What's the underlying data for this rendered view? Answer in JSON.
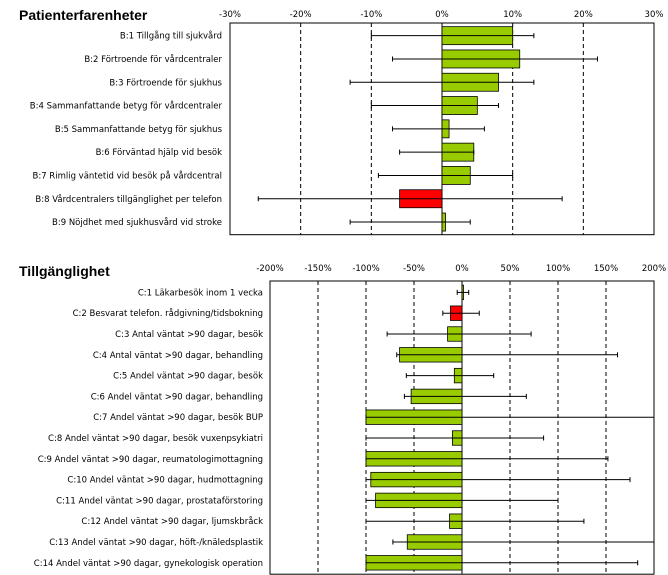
{
  "colors": {
    "positive": "#99cc00",
    "negative": "#ff0000",
    "bar_stroke": "#000000",
    "grid": "#000000",
    "frame": "#000000"
  },
  "chart_data": [
    {
      "type": "bar",
      "orientation": "horizontal",
      "title": "Patienterfarenheter",
      "xlim": [
        -30,
        30
      ],
      "ticks": [
        "-30%",
        "-20%",
        "-10%",
        "0%",
        "10%",
        "20%",
        "30%"
      ],
      "tick_values": [
        -30,
        -20,
        -10,
        0,
        10,
        20,
        30
      ],
      "grid": "dashed vertical",
      "categories": [
        "B:1 Tillgång till sjukvård",
        "B:2 Förtroende för vårdcentraler",
        "B:3 Förtroende för sjukhus",
        "B:4 Sammanfattande betyg för vårdcentraler",
        "B:5 Sammanfattande betyg för sjukhus",
        "B:6 Förväntad hjälp vid besök",
        "B:7 Rimlig väntetid vid besök på vårdcentral",
        "B:8 Vårdcentralers tillgänglighet per telefon",
        "B:9 Nöjdhet med sjukhusvård vid stroke"
      ],
      "values": [
        10,
        11,
        8,
        5,
        1,
        4.5,
        4,
        -6,
        0.5
      ],
      "error_low": [
        -10,
        -7,
        -13,
        -10,
        -7,
        -6,
        -9,
        -26,
        -13
      ],
      "error_high": [
        13,
        22,
        13,
        8,
        6,
        4.5,
        10,
        17,
        4
      ]
    },
    {
      "type": "bar",
      "orientation": "horizontal",
      "title": "Tillgänglighet",
      "xlim": [
        -200,
        200
      ],
      "ticks": [
        "-200%",
        "-150%",
        "-100%",
        "-50%",
        "0%",
        "50%",
        "100%",
        "150%",
        "200%"
      ],
      "tick_values": [
        -200,
        -150,
        -100,
        -50,
        0,
        50,
        100,
        150,
        200
      ],
      "grid": "dashed vertical",
      "categories": [
        "C:1 Läkarbesök inom 1 vecka",
        "C:2 Besvarat telefon. rådgivning/tidsbokning",
        "C:3 Antal väntat >90 dagar, besök",
        "C:4 Antal väntat >90 dagar, behandling",
        "C:5 Andel väntat >90 dagar, besök",
        "C:6 Andel väntat >90 dagar, behandling",
        "C:7 Andel väntat >90 dagar, besök BUP",
        "C:8 Andel väntat >90 dagar, besök vuxenpsykiatri",
        "C:9 Andel väntat >90 dagar, reumatologimottagning",
        "C:10 Andel väntat >90 dagar, hudmottagning",
        "C:11 Andel väntat >90 dagar, prostataförstoring",
        "C:12 Andel väntat >90 dagar, ljumskbråck",
        "C:13 Andel väntat >90 dagar, höft-/knäledsplastik",
        "C:14 Andel väntat >90 dagar, gynekologisk operation"
      ],
      "values": [
        1,
        -12,
        -15,
        -65,
        -8,
        -53,
        -100,
        -10,
        -100,
        -95,
        -90,
        -13,
        -57,
        -100
      ],
      "error_low": [
        -5,
        -20,
        -78,
        -68,
        -58,
        -60,
        -100,
        -100,
        -100,
        -100,
        -100,
        -100,
        -72,
        -100
      ],
      "error_high": [
        7,
        18,
        72,
        162,
        33,
        67,
        200,
        85,
        152,
        175,
        100,
        127,
        200,
        183
      ]
    }
  ]
}
